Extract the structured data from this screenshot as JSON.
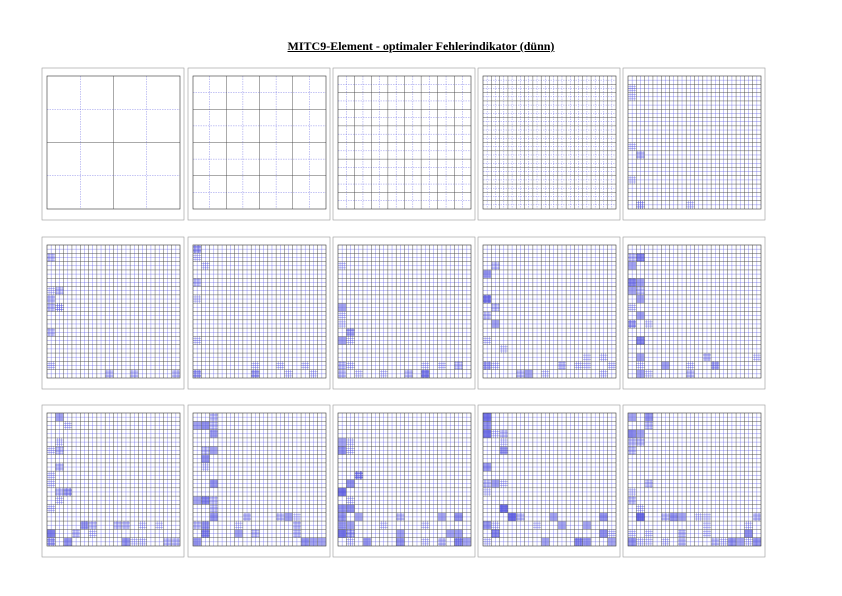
{
  "header": {
    "title": "MITC9-Element - optimaler Fehlerindikator (dünn)"
  }
}
